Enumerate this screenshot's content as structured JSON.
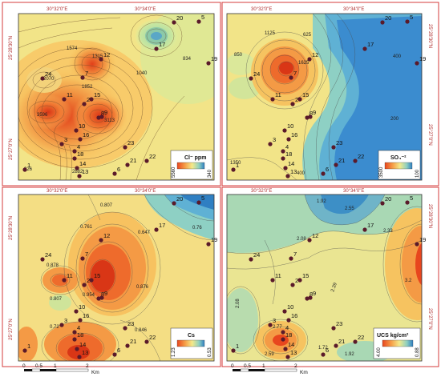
{
  "coords": {
    "lon_left": "30°32'0\"E",
    "lon_right": "30°34'0\"E",
    "lat_top": "25°28'30\"N",
    "lat_bottom": "25°27'0\"N"
  },
  "colors": {
    "low": "#2f7fc2",
    "mid_low": "#8fd0c0",
    "mid": "#f4e98a",
    "mid_high": "#f6a24a",
    "high": "#e8461e",
    "well_marker": "#5a1a2a",
    "frame": "#d43b3b"
  },
  "wells": [
    {
      "id": "1"
    },
    {
      "id": "2"
    },
    {
      "id": "3"
    },
    {
      "id": "4"
    },
    {
      "id": "5"
    },
    {
      "id": "6"
    },
    {
      "id": "7"
    },
    {
      "id": "8"
    },
    {
      "id": "9"
    },
    {
      "id": "10"
    },
    {
      "id": "11"
    },
    {
      "id": "12"
    },
    {
      "id": "13"
    },
    {
      "id": "14"
    },
    {
      "id": "15"
    },
    {
      "id": "16"
    },
    {
      "id": "17"
    },
    {
      "id": "18"
    },
    {
      "id": "19"
    },
    {
      "id": "20"
    },
    {
      "id": "21"
    },
    {
      "id": "22"
    },
    {
      "id": "23"
    },
    {
      "id": "24"
    }
  ],
  "panels": [
    {
      "id": "chloride",
      "legend": {
        "title": "Cl⁻ ppm",
        "max": "5560",
        "min": "340"
      },
      "contour_labels": [
        "1574",
        "1315",
        "2070",
        "1852",
        "3596",
        "3113",
        "1040",
        "834",
        "926",
        "2882"
      ]
    },
    {
      "id": "sulfate",
      "legend": {
        "title": "SO₄⁻²",
        "max": "3500",
        "min": "100"
      },
      "contour_labels": [
        "1125",
        "625",
        "850",
        "1625",
        "400",
        "200",
        "1350",
        "400"
      ]
    },
    {
      "id": "cs",
      "legend": {
        "title": "Cs",
        "max": "1.23",
        "min": "0.53"
      },
      "contour_labels": [
        "0.807",
        "0.761",
        "0.647",
        "0.76",
        "0.876",
        "0.878",
        "0.807",
        "0.954",
        "0.846",
        "0.72"
      ]
    },
    {
      "id": "ucs",
      "legend": {
        "title": "UCS kg/cm²",
        "max": "4.00",
        "min": "0.88"
      },
      "contour_labels": [
        "1.92",
        "2.55",
        "2.08",
        "2.33",
        "2.08",
        "2.39",
        "3.2",
        "2.77",
        "2.59",
        "1.72",
        "1.92"
      ]
    }
  ],
  "scale_bar": {
    "ticks": [
      "0",
      "0.5",
      "1",
      "2"
    ],
    "unit": "Km"
  }
}
